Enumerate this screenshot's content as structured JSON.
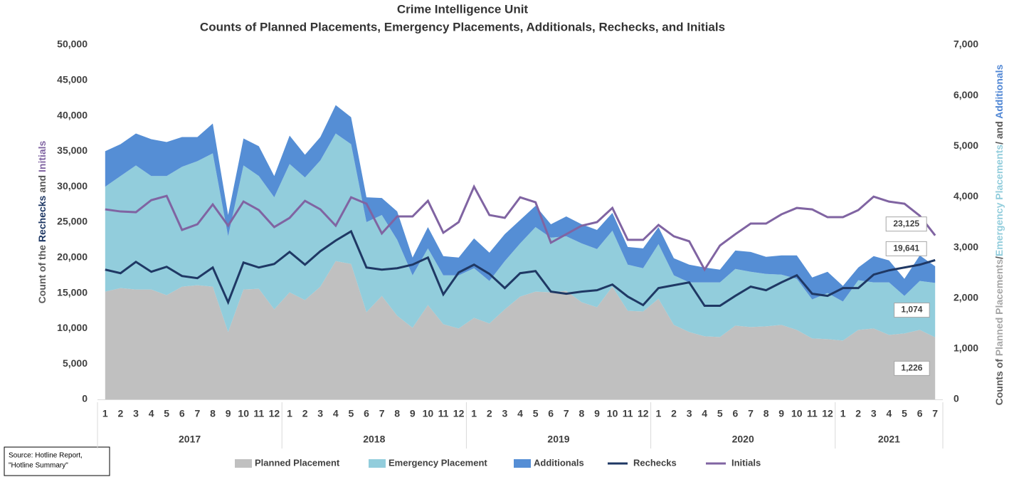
{
  "chart_data": {
    "type": "area",
    "title": "Crime Intelligence Unit",
    "subtitle": "Counts of Planned Placements, Emergency Placements, Additionals, Rechecks, and Initials",
    "ylabel_parts": [
      {
        "text": "Count of the ",
        "color": "#595959"
      },
      {
        "text": "Rechecks",
        "color": "#1f3864"
      },
      {
        "text": " and ",
        "color": "#595959"
      },
      {
        "text": "Initials",
        "color": "#8064a2"
      }
    ],
    "y2label_parts": [
      {
        "text": "Counts of ",
        "color": "#595959"
      },
      {
        "text": "Planned Placements",
        "color": "#a6a6a6"
      },
      {
        "text": "/",
        "color": "#595959"
      },
      {
        "text": "Emergency Placements",
        "color": "#92cddc"
      },
      {
        "text": "/ and ",
        "color": "#595959"
      },
      {
        "text": "Additionals",
        "color": "#4f86d4"
      }
    ],
    "source": [
      "Source: Hotline Report,",
      "\"Hotline Summary\""
    ],
    "categories": [
      "1",
      "2",
      "3",
      "4",
      "5",
      "6",
      "7",
      "8",
      "9",
      "10",
      "11",
      "12",
      "1",
      "2",
      "3",
      "4",
      "5",
      "6",
      "7",
      "8",
      "9",
      "10",
      "11",
      "12",
      "1",
      "2",
      "3",
      "4",
      "5",
      "6",
      "7",
      "8",
      "9",
      "10",
      "11",
      "12",
      "1",
      "2",
      "3",
      "4",
      "5",
      "6",
      "7",
      "8",
      "9",
      "10",
      "11",
      "12",
      "1",
      "2",
      "3",
      "4",
      "5",
      "6",
      "7"
    ],
    "groups": [
      "2017",
      "2018",
      "2019",
      "2020",
      "2021"
    ],
    "ylim": [
      0,
      50000
    ],
    "yticks": [
      0,
      {
        "value": 5000,
        "label": "5,000"
      },
      {
        "value": 10000,
        "label": "10,000"
      },
      {
        "value": 15000,
        "label": "15,000"
      },
      {
        "value": 20000,
        "label": "20,000"
      },
      {
        "value": 25000,
        "label": "25,000"
      },
      {
        "value": 30000,
        "label": "30,000"
      },
      {
        "value": 35000,
        "label": "35,000"
      },
      {
        "value": 40000,
        "label": "40,000"
      },
      {
        "value": 45000,
        "label": "45,000"
      },
      {
        "value": 50000,
        "label": "50,000"
      }
    ],
    "y2lim": [
      0,
      7000
    ],
    "y2ticks": [
      0,
      {
        "value": 1000,
        "label": "1,000"
      },
      {
        "value": 2000,
        "label": "2,000"
      },
      {
        "value": 3000,
        "label": "3,000"
      },
      {
        "value": 4000,
        "label": "4,000"
      },
      {
        "value": 5000,
        "label": "5,000"
      },
      {
        "value": 6000,
        "label": "6,000"
      },
      {
        "value": 7000,
        "label": "7,000"
      }
    ],
    "series": [
      {
        "name": "Planned Placement",
        "type": "area",
        "axis": "y2",
        "color": "#c0c0c0",
        "values": [
          2128,
          2198,
          2170,
          2170,
          2058,
          2226,
          2254,
          2226,
          1330,
          2170,
          2184,
          1778,
          2114,
          1960,
          2226,
          2730,
          2674,
          1722,
          2044,
          1652,
          1414,
          1862,
          1484,
          1400,
          1610,
          1498,
          1778,
          2030,
          2128,
          2114,
          2142,
          1918,
          1820,
          2226,
          1750,
          1736,
          1988,
          1470,
          1330,
          1246,
          1232,
          1456,
          1428,
          1442,
          1470,
          1372,
          1204,
          1190,
          1162,
          1372,
          1400,
          1274,
          1302,
          1372,
          1226
        ],
        "value_labels": [
          null,
          null,
          null,
          null,
          null,
          null,
          null,
          null,
          null,
          null,
          null,
          null,
          null,
          null,
          null,
          null,
          null,
          null,
          null,
          null,
          null,
          null,
          null,
          null,
          null,
          null,
          null,
          null,
          null,
          null,
          null,
          null,
          null,
          null,
          null,
          null,
          null,
          null,
          null,
          null,
          null,
          null,
          null,
          null,
          null,
          null,
          null,
          null,
          null,
          null,
          null,
          null,
          null,
          null,
          "1,226"
        ]
      },
      {
        "name": "Emergency Placement",
        "type": "area",
        "axis": "y2",
        "color": "#92cddc",
        "values": [
          2072,
          2212,
          2450,
          2240,
          2352,
          2366,
          2450,
          2632,
          1890,
          2450,
          2226,
          2212,
          2534,
          2422,
          2492,
          2520,
          2366,
          1778,
          1596,
          1498,
          1036,
          1120,
          966,
          1050,
          980,
          840,
          952,
          1050,
          1274,
          1078,
          1078,
          1162,
          1148,
          1106,
          910,
          854,
          1078,
          980,
          980,
          1064,
          1078,
          1120,
          1092,
          1036,
          994,
          1008,
          770,
          910,
          770,
          980,
          910,
          1036,
          742,
          966,
          1074
        ],
        "value_labels": [
          null,
          null,
          null,
          null,
          null,
          null,
          null,
          null,
          null,
          null,
          null,
          null,
          null,
          null,
          null,
          null,
          null,
          null,
          null,
          null,
          null,
          null,
          null,
          null,
          null,
          null,
          null,
          null,
          null,
          null,
          null,
          null,
          null,
          null,
          null,
          null,
          null,
          null,
          null,
          null,
          null,
          null,
          null,
          null,
          null,
          null,
          null,
          null,
          null,
          null,
          null,
          null,
          null,
          null,
          "1,074"
        ]
      },
      {
        "name": "Additionals",
        "type": "area",
        "axis": "y2",
        "color": "#558ed5",
        "values": [
          700,
          630,
          630,
          728,
          672,
          588,
          476,
          588,
          420,
          532,
          588,
          420,
          560,
          448,
          462,
          560,
          532,
          490,
          336,
          560,
          350,
          420,
          378,
          350,
          588,
          560,
          532,
          462,
          420,
          266,
          392,
          378,
          378,
          350,
          350,
          392,
          336,
          336,
          350,
          294,
          252,
          364,
          392,
          336,
          378,
          462,
          434,
          420,
          308,
          252,
          518,
          434,
          336,
          504,
          328
        ]
      },
      {
        "name": "Rechecks",
        "type": "line",
        "axis": "y",
        "color": "#1f3864",
        "values": [
          18300,
          17800,
          19400,
          18000,
          18700,
          17400,
          17100,
          18600,
          13700,
          19300,
          18600,
          19100,
          20800,
          19000,
          20900,
          22400,
          23700,
          18600,
          18300,
          18500,
          19000,
          20000,
          14800,
          17900,
          19000,
          17700,
          15700,
          17800,
          18100,
          15200,
          14900,
          15200,
          15400,
          16200,
          14500,
          13300,
          15700,
          16100,
          16500,
          13200,
          13200,
          14600,
          15900,
          15400,
          16500,
          17500,
          14900,
          14600,
          15700,
          15700,
          17600,
          18200,
          18600,
          19000,
          19641
        ],
        "value_labels": [
          null,
          null,
          null,
          null,
          null,
          null,
          null,
          null,
          null,
          null,
          null,
          null,
          null,
          null,
          null,
          null,
          null,
          null,
          null,
          null,
          null,
          null,
          null,
          null,
          null,
          null,
          null,
          null,
          null,
          null,
          null,
          null,
          null,
          null,
          null,
          null,
          null,
          null,
          null,
          null,
          null,
          null,
          null,
          null,
          null,
          null,
          null,
          null,
          null,
          null,
          null,
          null,
          null,
          null,
          "19,641"
        ]
      },
      {
        "name": "Initials",
        "type": "line",
        "axis": "y",
        "color": "#8064a2",
        "values": [
          26800,
          26500,
          26400,
          28100,
          28700,
          23900,
          24700,
          27500,
          24500,
          27900,
          26700,
          24300,
          25600,
          28000,
          26800,
          24500,
          28500,
          27600,
          23400,
          25800,
          25800,
          28000,
          23500,
          25000,
          30000,
          26000,
          25600,
          28500,
          27800,
          22100,
          23300,
          24500,
          25000,
          27000,
          22500,
          22500,
          24600,
          23000,
          22300,
          18300,
          21700,
          23300,
          24800,
          24800,
          26100,
          27000,
          26800,
          25700,
          25700,
          26700,
          28600,
          27900,
          27600,
          25900,
          23125
        ],
        "value_labels": [
          null,
          null,
          null,
          null,
          null,
          null,
          null,
          null,
          null,
          null,
          null,
          null,
          null,
          null,
          null,
          null,
          null,
          null,
          null,
          null,
          null,
          null,
          null,
          null,
          null,
          null,
          null,
          null,
          null,
          null,
          null,
          null,
          null,
          null,
          null,
          null,
          null,
          null,
          null,
          null,
          null,
          null,
          null,
          null,
          null,
          null,
          null,
          null,
          null,
          null,
          null,
          null,
          null,
          null,
          "23,125"
        ]
      }
    ]
  }
}
